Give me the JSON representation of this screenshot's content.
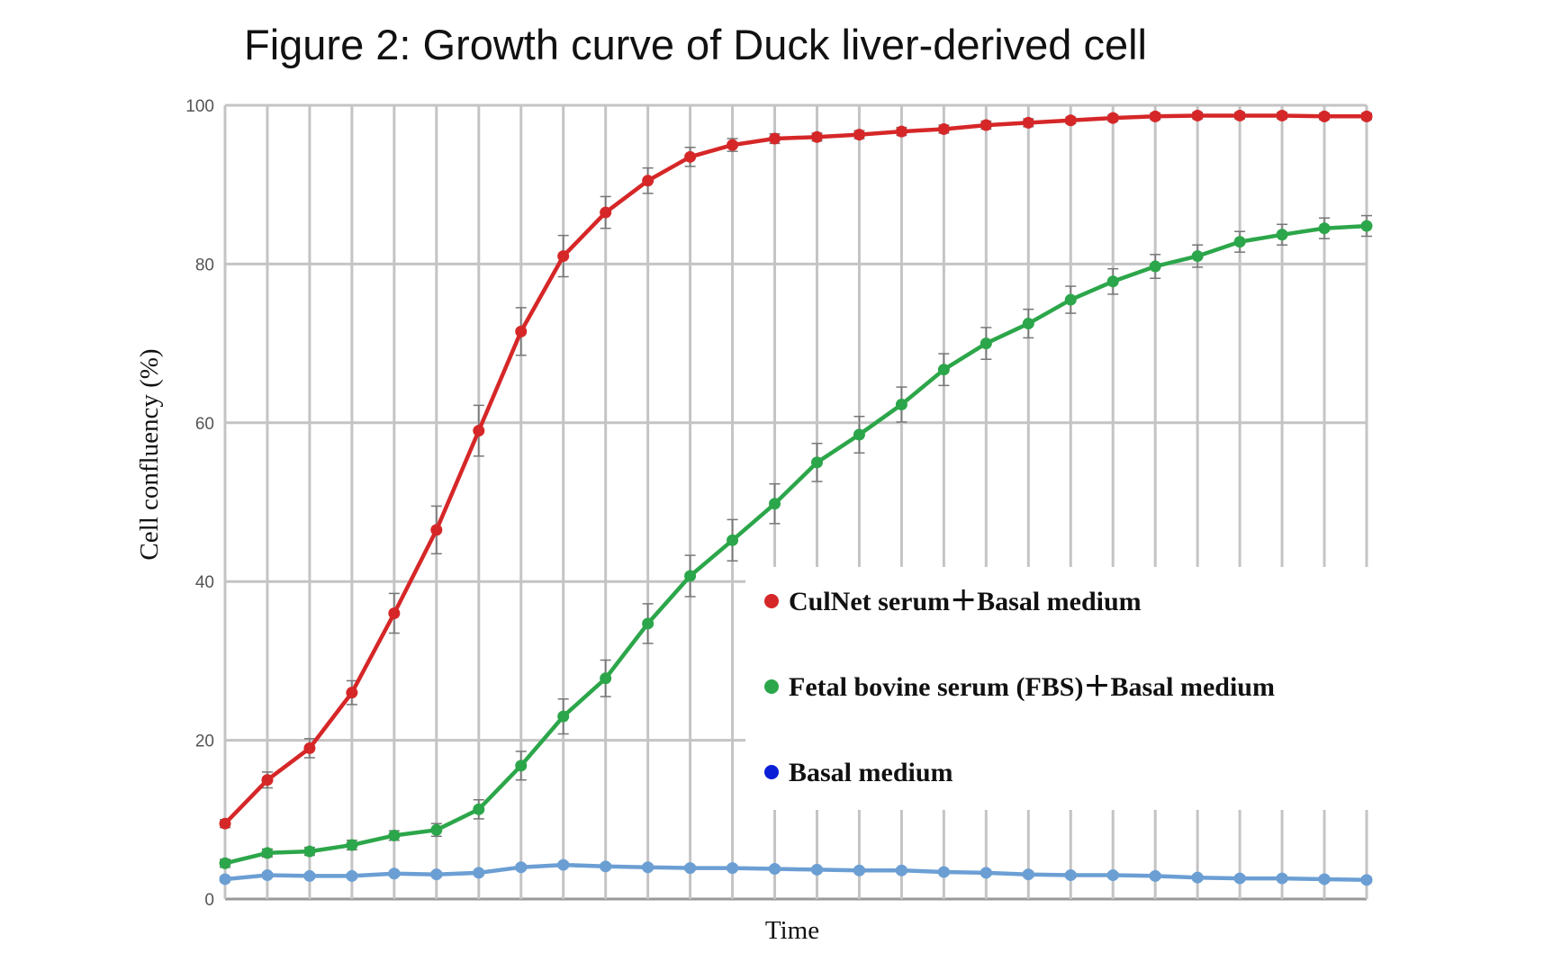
{
  "chart_data": {
    "type": "line",
    "title": "Figure 2: Growth curve of Duck liver-derived cell",
    "xlabel": "Time",
    "ylabel": "Cell confluency (%)",
    "ylim": [
      0,
      100
    ],
    "yticks": [
      0,
      20,
      40,
      60,
      80,
      100
    ],
    "grid": true,
    "legend_position": "center-right",
    "x": [
      0,
      1,
      2,
      3,
      4,
      5,
      6,
      7,
      8,
      9,
      10,
      11,
      12,
      13,
      14,
      15,
      16,
      17,
      18,
      19,
      20,
      21,
      22,
      23,
      24,
      25,
      26,
      27
    ],
    "series": [
      {
        "name": "CulNet serum＋Basal medium",
        "color": "#d62728",
        "values": [
          9.5,
          15,
          19,
          26,
          36,
          46.5,
          59,
          71.5,
          81,
          86.5,
          90.5,
          93.5,
          95,
          95.8,
          96,
          96.3,
          96.7,
          97,
          97.5,
          97.8,
          98.1,
          98.4,
          98.6,
          98.7,
          98.7,
          98.7,
          98.6,
          98.6
        ],
        "errors": [
          0.5,
          1,
          1.2,
          1.5,
          2.5,
          3,
          3.2,
          3,
          2.6,
          2,
          1.6,
          1.2,
          0.8,
          0.6,
          0.5,
          0.5,
          0.5,
          0.5,
          0.5,
          0.5,
          0.4,
          0.4,
          0.4,
          0.4,
          0.4,
          0.4,
          0.4,
          0.4
        ]
      },
      {
        "name": "Fetal bovine serum (FBS)＋Basal medium",
        "color": "#2ca64a",
        "values": [
          4.5,
          5.8,
          6,
          6.8,
          8,
          8.7,
          11.3,
          16.8,
          23,
          27.8,
          34.7,
          40.7,
          45.2,
          49.8,
          55,
          58.5,
          62.3,
          66.7,
          70,
          72.5,
          75.5,
          77.8,
          79.7,
          81,
          82.8,
          83.7,
          84.5,
          84.8
        ],
        "errors": [
          0.5,
          0.5,
          0.5,
          0.6,
          0.6,
          0.8,
          1.2,
          1.8,
          2.2,
          2.3,
          2.5,
          2.6,
          2.6,
          2.5,
          2.4,
          2.3,
          2.2,
          2,
          2,
          1.8,
          1.7,
          1.6,
          1.5,
          1.4,
          1.3,
          1.3,
          1.3,
          1.3
        ]
      },
      {
        "name": "Basal medium",
        "color": "#6b9fd4",
        "legend_color": "#0a1fd6",
        "values": [
          2.5,
          3,
          2.9,
          2.9,
          3.2,
          3.1,
          3.3,
          4,
          4.3,
          4.1,
          4,
          3.9,
          3.9,
          3.8,
          3.7,
          3.6,
          3.6,
          3.4,
          3.3,
          3.1,
          3,
          3,
          2.9,
          2.7,
          2.6,
          2.6,
          2.5,
          2.4
        ],
        "errors": [
          0.3,
          0.3,
          0.3,
          0.3,
          0.3,
          0.3,
          0.3,
          0.3,
          0.3,
          0.3,
          0.3,
          0.3,
          0.3,
          0.3,
          0.3,
          0.3,
          0.3,
          0.3,
          0.3,
          0.3,
          0.3,
          0.3,
          0.3,
          0.3,
          0.3,
          0.3,
          0.3,
          0.3
        ]
      }
    ]
  }
}
